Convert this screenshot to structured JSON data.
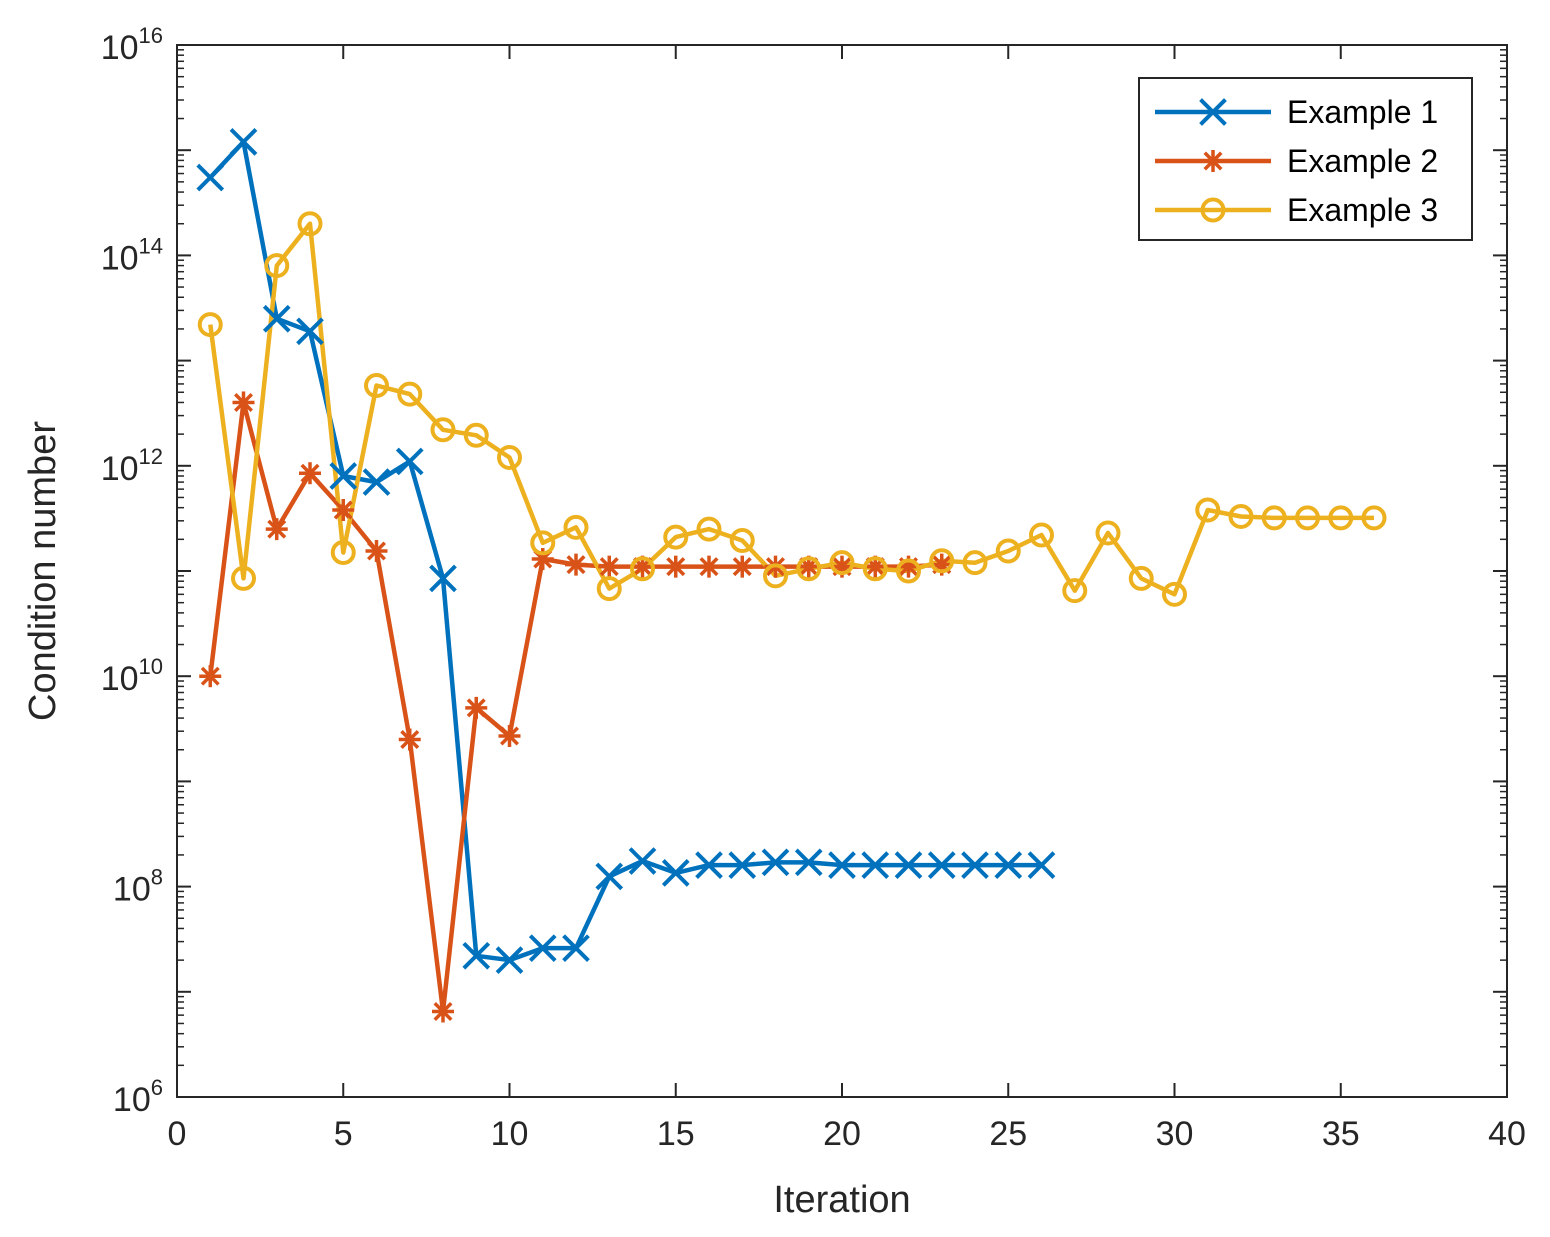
{
  "chart_data": {
    "type": "line",
    "title": "",
    "xlabel": "Iteration",
    "ylabel": "Condition number",
    "yscale": "log",
    "xlim": [
      0,
      40
    ],
    "ylim": [
      1000000.0,
      1e+16
    ],
    "xticks": [
      0,
      5,
      10,
      15,
      20,
      25,
      30,
      35,
      40
    ],
    "xtick_labels": [
      "0",
      "5",
      "10",
      "15",
      "20",
      "25",
      "30",
      "35",
      "40"
    ],
    "yticks": [
      {
        "value": 1000000.0,
        "base": "10",
        "exp": "6"
      },
      {
        "value": 100000000.0,
        "base": "10",
        "exp": "8"
      },
      {
        "value": 10000000000.0,
        "base": "10",
        "exp": "10"
      },
      {
        "value": 1000000000000.0,
        "base": "10",
        "exp": "12"
      },
      {
        "value": 100000000000000.0,
        "base": "10",
        "exp": "14"
      },
      {
        "value": 1e+16,
        "base": "10",
        "exp": "16"
      }
    ],
    "grid": false,
    "legend_position": "top-right",
    "series": [
      {
        "name": "Example 1",
        "color": "#0072BD",
        "marker": "x",
        "x": [
          1,
          2,
          3,
          4,
          5,
          6,
          7,
          8,
          9,
          10,
          11,
          12,
          13,
          14,
          15,
          16,
          17,
          18,
          19,
          20,
          21,
          22,
          23,
          24,
          25,
          26
        ],
        "y": [
          550000000000000.0,
          1200000000000000.0,
          25000000000000.0,
          19000000000000.0,
          800000000000.0,
          700000000000.0,
          1100000000000.0,
          85000000000.0,
          22000000.0,
          20000000.0,
          26000000.0,
          26000000.0,
          125000000.0,
          175000000.0,
          135000000.0,
          160000000.0,
          160000000.0,
          170000000.0,
          170000000.0,
          160000000.0,
          160000000.0,
          160000000.0,
          160000000.0,
          160000000.0,
          160000000.0,
          160000000.0
        ]
      },
      {
        "name": "Example 2",
        "color": "#D95319",
        "marker": "*",
        "x": [
          1,
          2,
          3,
          4,
          5,
          6,
          7,
          8,
          9,
          10,
          11,
          12,
          13,
          14,
          15,
          16,
          17,
          18,
          19,
          20,
          21,
          22,
          23
        ],
        "y": [
          10000000000.0,
          4000000000000.0,
          250000000000.0,
          850000000000.0,
          380000000000.0,
          155000000000.0,
          2500000000.0,
          6500000.0,
          5000000000.0,
          2700000000.0,
          130000000000.0,
          115000000000.0,
          110000000000.0,
          110000000000.0,
          110000000000.0,
          110000000000.0,
          110000000000.0,
          110000000000.0,
          110000000000.0,
          110000000000.0,
          110000000000.0,
          110000000000.0,
          115000000000.0
        ]
      },
      {
        "name": "Example 3",
        "color": "#EDB120",
        "marker": "o",
        "x": [
          1,
          2,
          3,
          4,
          5,
          6,
          7,
          8,
          9,
          10,
          11,
          12,
          13,
          14,
          15,
          16,
          17,
          18,
          19,
          20,
          21,
          22,
          23,
          24,
          25,
          26,
          27,
          28,
          29,
          30,
          31,
          32,
          33,
          34,
          35,
          36
        ],
        "y": [
          22000000000000.0,
          85000000000.0,
          80000000000000.0,
          200000000000000.0,
          150000000000.0,
          5800000000000.0,
          4800000000000.0,
          2200000000000.0,
          1950000000000.0,
          1200000000000.0,
          185000000000.0,
          260000000000.0,
          68000000000.0,
          105000000000.0,
          210000000000.0,
          250000000000.0,
          195000000000.0,
          90000000000.0,
          105000000000.0,
          120000000000.0,
          105000000000.0,
          100000000000.0,
          125000000000.0,
          120000000000.0,
          155000000000.0,
          220000000000.0,
          65000000000.0,
          230000000000.0,
          85000000000.0,
          60000000000.0,
          380000000000.0,
          330000000000.0,
          320000000000.0,
          320000000000.0,
          320000000000.0,
          320000000000.0
        ]
      }
    ]
  }
}
